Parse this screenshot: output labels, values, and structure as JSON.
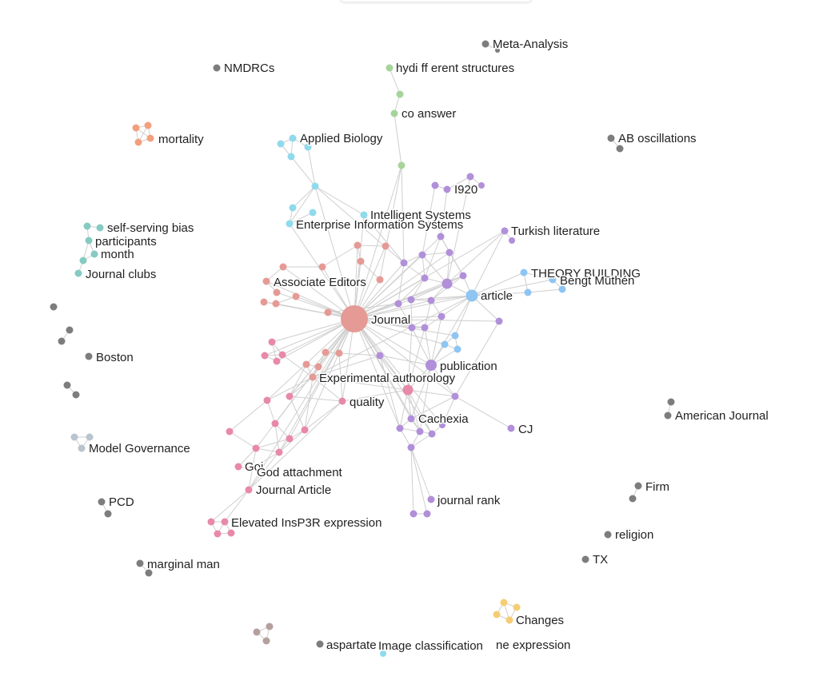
{
  "colors": {
    "salmon": "#e59a95",
    "purple": "#b18fd9",
    "blue": "#8ec5f2",
    "cyan": "#8fdaec",
    "green": "#a6d49b",
    "pink": "#e889a8",
    "orange": "#f2a07e",
    "teal": "#86cbc2",
    "gray": "#7d7d7d",
    "slate": "#b9c4cf",
    "yellow": "#f6cd74",
    "taupe": "#b4a09c",
    "edge": "#cfcfcf"
  },
  "labels": {
    "meta_analysis": "Meta-Analysis",
    "nmdrcs": "NMDRCs",
    "hy_different": "hydi ff erent structures",
    "coanswer": "co answer",
    "mortality": "mortality",
    "applied_biology": "Applied Biology",
    "ab_oscillations": "AB oscillations",
    "i920": "I920",
    "intelligent_systems": "Intelligent Systems",
    "enterprise_info": "Enterprise Information Systems",
    "turkish_literature": "Turkish literature",
    "self_serving": "self-serving bias",
    "participants": "participants",
    "month": "month",
    "journal_clubs": "Journal clubs",
    "theory_building": "THEORY BUILDING",
    "bengt_muthen": "Bengt Muthén",
    "associate_editors": "Associate Editors",
    "article": "article",
    "journal": "Journal",
    "boston": "Boston",
    "publication": "publication",
    "experimental_author": "Experimental authorology",
    "quality": "quality",
    "cachexia": "Cachexia",
    "american_journal": "American Journal",
    "cj": "CJ",
    "model_governance": "Model Governance",
    "goi": "Goi",
    "god_attachment": "God attachment",
    "firm": "Firm",
    "journal_article": "Journal Article",
    "pcd": "PCD",
    "journal_rank": "journal rank",
    "elevated": "Elevated InsP3R expression",
    "religion": "religion",
    "tx": "TX",
    "marginal_man": "marginal man",
    "changes": "Changes",
    "aspartate": "aspartate",
    "image_classification": "Image classification",
    "gene_expression": "ne expression"
  }
}
